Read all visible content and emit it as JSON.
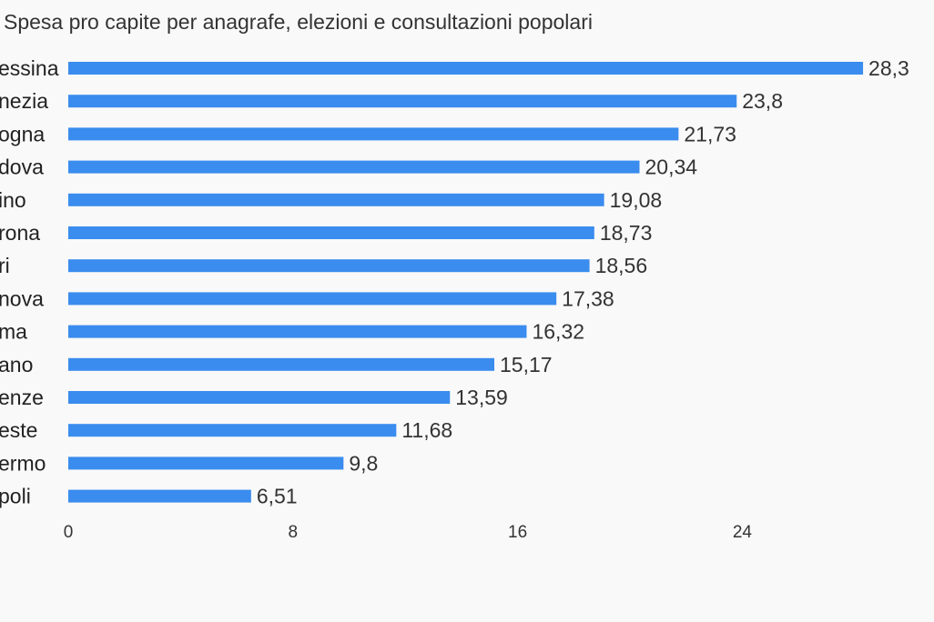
{
  "chart_data": {
    "type": "bar",
    "orientation": "horizontal",
    "title": "Spesa pro capite per anagrafe, elezioni e consultazioni popolari",
    "categories": [
      "essina",
      "nezia",
      "ogna",
      "dova",
      "ino",
      "rona",
      "ri",
      "nova",
      "ma",
      "ano",
      "enze",
      "este",
      "ermo",
      "poli"
    ],
    "values": [
      28.3,
      23.8,
      21.73,
      20.34,
      19.08,
      18.73,
      18.56,
      17.38,
      16.32,
      15.17,
      13.59,
      11.68,
      9.8,
      6.51
    ],
    "value_labels": [
      "28,3",
      "23,8",
      "21,73",
      "20,34",
      "19,08",
      "18,73",
      "18,56",
      "17,38",
      "16,32",
      "15,17",
      "13,59",
      "11,68",
      "9,8",
      "6,51"
    ],
    "x_ticks": [
      0,
      8,
      16,
      24
    ],
    "x_tick_labels": [
      "0",
      "8",
      "16",
      "24"
    ],
    "xlim": [
      0,
      28.3
    ],
    "grid": false,
    "legend": "none",
    "bar_color": "#3a8cee"
  }
}
